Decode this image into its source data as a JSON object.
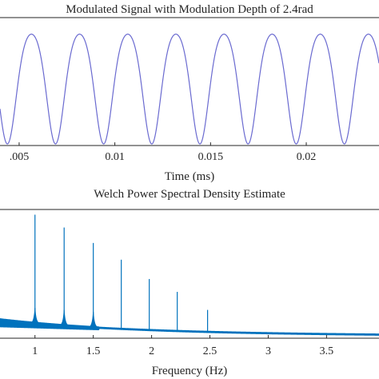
{
  "chart_data": [
    {
      "type": "line",
      "title": "Modulated Signal with Modulation Depth of 2.4rad",
      "xlabel": "Time (ms)",
      "ylabel": "",
      "xlim": [
        0.004,
        0.0238
      ],
      "x_ticks": [
        0.005,
        0.01,
        0.015,
        0.02
      ],
      "x_tick_labels": [
        ".005",
        "0.01",
        "0.015",
        "0.02"
      ],
      "grid": false,
      "series": [
        {
          "color": "#6a6ad0",
          "signal": {
            "form": "1 - cos(a * sin(2*pi*t/period))",
            "modulation_depth_rad": 2.4,
            "period_ms": 0.00503,
            "phase_ms": 0.0069
          }
        }
      ]
    },
    {
      "type": "line",
      "title": "Welch Power Spectral Density Estimate",
      "xlabel": "Frequency (Hz)",
      "ylabel": "",
      "xlim": [
        0.7,
        3.95
      ],
      "x_ticks": [
        1,
        1.5,
        2,
        2.5,
        3,
        3.5
      ],
      "x_tick_labels": [
        "1",
        "1.5",
        "2",
        "2.5",
        "3",
        "3.5"
      ],
      "grid": false,
      "series": [
        {
          "color": "#0072bd",
          "peaks": [
            {
              "x": 1.0,
              "y": 0.96
            },
            {
              "x": 1.25,
              "y": 0.86
            },
            {
              "x": 1.5,
              "y": 0.74
            },
            {
              "x": 1.74,
              "y": 0.61
            },
            {
              "x": 1.98,
              "y": 0.46
            },
            {
              "x": 2.22,
              "y": 0.36
            },
            {
              "x": 2.48,
              "y": 0.22
            }
          ]
        }
      ]
    }
  ]
}
